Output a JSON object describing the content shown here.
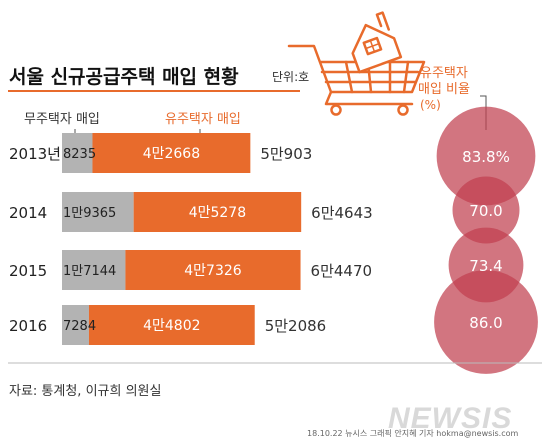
{
  "chart_data": {
    "type": "bar",
    "title": "서울 신규공급주택 매입 현황",
    "unit": "단위:호",
    "series": [
      {
        "name": "무주택자 매입",
        "color": "#b3b3b3",
        "values": [
          8235,
          19365,
          17144,
          7284
        ],
        "labels": [
          "8235",
          "1만9365",
          "1만7144",
          "7284"
        ]
      },
      {
        "name": "유주택자 매입",
        "color": "#e86b2c",
        "values": [
          42668,
          45278,
          47326,
          44802
        ],
        "labels": [
          "4만2668",
          "4만5278",
          "4만7326",
          "4만4802"
        ]
      }
    ],
    "categories": [
      "2013년",
      "2014",
      "2015",
      "2016"
    ],
    "totals": [
      50903,
      64643,
      64470,
      52086
    ],
    "total_labels": [
      "5만903",
      "6만4643",
      "6만4470",
      "5만2086"
    ],
    "ratio": {
      "title_line1": "유주택자",
      "title_line2": "매입 비율",
      "unit": "(%)",
      "values": [
        83.8,
        70.0,
        73.4,
        86.0
      ],
      "labels": [
        "83.8%",
        "70.0",
        "73.4",
        "86.0"
      ]
    }
  },
  "footer": {
    "source": "자료: 통계청, 이규희 의원실",
    "credit": "18.10.22 뉴시스 그래픽 안지혜 기자 hokma@newsis.com",
    "watermark": "NEWSIS"
  },
  "colors": {
    "accent": "#e86b2c",
    "ratio_circle": "#c0404f",
    "ratio_circle_dark": "#8c1f2b",
    "gray_bar": "#b3b3b3",
    "rule": "#e86b2c"
  },
  "icons": [
    "shopping-cart-house-icon"
  ]
}
